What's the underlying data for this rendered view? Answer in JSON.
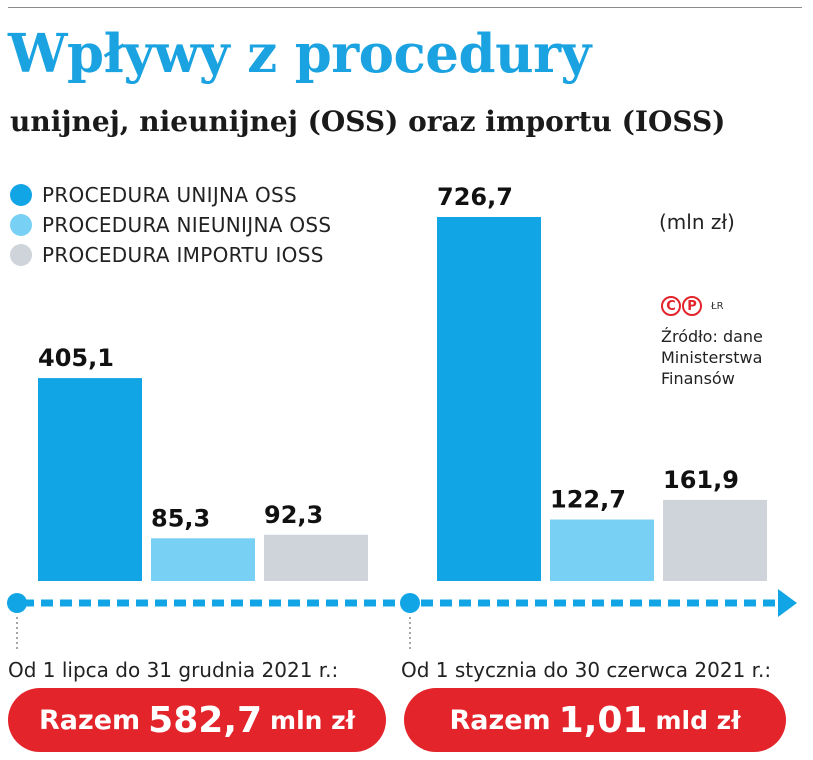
{
  "title": "Wpływy z procedury",
  "subtitle": "unijnej, nieunijnej (OSS) oraz importu (IOSS)",
  "unit_label": "(mln zł)",
  "credit": {
    "logo_letters": [
      "C",
      "P"
    ],
    "initials": "ŁR"
  },
  "source_lines": [
    "Źródło: dane",
    "Ministerstwa",
    "Finansów"
  ],
  "colors": {
    "title": "#1aa3e0",
    "unijna": "#12a5e6",
    "nieunijna": "#79d0f5",
    "import": "#cfd4da",
    "total_pill": "#e3242b",
    "timeline": "#12a5e6"
  },
  "chart_data": {
    "type": "bar",
    "title": "Wpływy z procedury",
    "subtitle": "unijnej, nieunijnej (OSS) oraz importu (IOSS)",
    "unit": "(mln zł)",
    "legend_position": "top-left",
    "grid": false,
    "categories": [
      "Od 1 lipca do 31 grudnia 2021 r.:",
      "Od 1 stycznia do 30 czerwca 2021 r.:"
    ],
    "series": [
      {
        "name": "PROCEDURA UNIJNA OSS",
        "color": "#12a5e6",
        "values": [
          405.1,
          726.7
        ],
        "labels": [
          "405,1",
          "726,7"
        ]
      },
      {
        "name": "PROCEDURA NIEUNIJNA OSS",
        "color": "#79d0f5",
        "values": [
          85.3,
          122.7
        ],
        "labels": [
          "85,3",
          "122,7"
        ]
      },
      {
        "name": "PROCEDURA IMPORTU IOSS",
        "color": "#cfd4da",
        "values": [
          92.3,
          161.9
        ],
        "labels": [
          "92,3",
          "161,9"
        ]
      }
    ],
    "ylim": [
      0,
      726.7
    ],
    "totals": [
      {
        "prefix": "Razem",
        "amount": "582,7",
        "unit": "mln zł"
      },
      {
        "prefix": "Razem",
        "amount": "1,01",
        "unit": "mld zł"
      }
    ]
  }
}
